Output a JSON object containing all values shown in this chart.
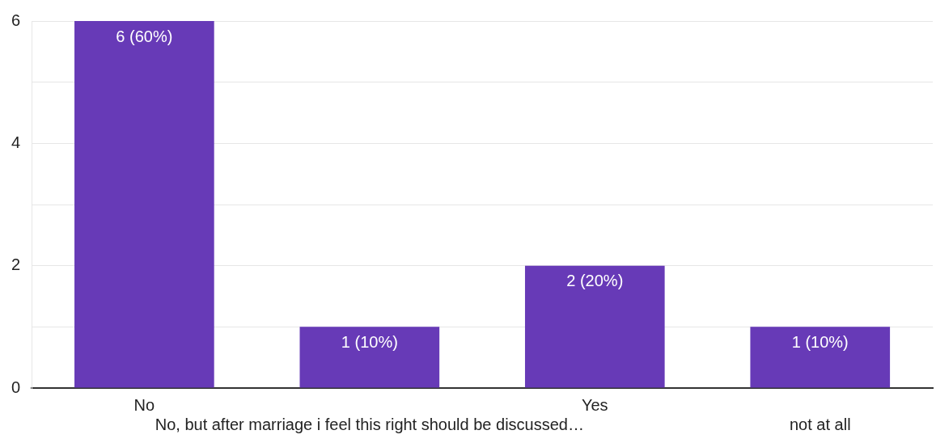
{
  "chart_data": {
    "type": "bar",
    "categories": [
      "No",
      "No, but after marriage i feel this right should be discussed…",
      "Yes",
      "not at all"
    ],
    "values": [
      6,
      1,
      2,
      1
    ],
    "value_labels": [
      "6 (60%)",
      "1 (10%)",
      "2 (20%)",
      "1 (10%)"
    ],
    "color": "#673ab7",
    "ylim": [
      0,
      6
    ],
    "yticks": [
      0,
      {
        "value": 1,
        "label": null
      },
      2,
      {
        "value": 3,
        "label": null
      },
      4,
      {
        "value": 5,
        "label": null
      },
      6
    ],
    "grid": "y",
    "legend": false
  }
}
